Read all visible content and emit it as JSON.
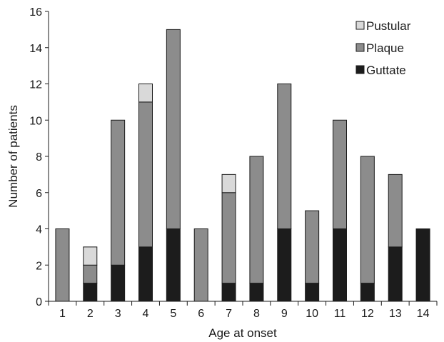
{
  "chart_data": {
    "type": "bar",
    "stacked": true,
    "categories": [
      "1",
      "2",
      "3",
      "4",
      "5",
      "6",
      "7",
      "8",
      "9",
      "10",
      "11",
      "12",
      "13",
      "14"
    ],
    "series": [
      {
        "name": "Guttate",
        "color": "#1c1c1c",
        "values": [
          0,
          1,
          2,
          3,
          4,
          0,
          1,
          1,
          4,
          1,
          4,
          1,
          3,
          4
        ]
      },
      {
        "name": "Plaque",
        "color": "#8c8c8c",
        "values": [
          4,
          1,
          8,
          8,
          11,
          4,
          5,
          7,
          8,
          4,
          6,
          7,
          4,
          0
        ]
      },
      {
        "name": "Pustular",
        "color": "#d9d9d9",
        "values": [
          0,
          1,
          0,
          1,
          0,
          0,
          1,
          0,
          0,
          0,
          0,
          0,
          0,
          0
        ]
      }
    ],
    "legend_order": [
      "Pustular",
      "Plaque",
      "Guttate"
    ],
    "legend_position": "top-right",
    "xlabel": "Age at onset",
    "ylabel": "Number of patients",
    "ylim": [
      0,
      16
    ],
    "yticks": [
      "0",
      "2",
      "4",
      "6",
      "8",
      "10",
      "12",
      "14",
      "16"
    ],
    "grid": false
  }
}
